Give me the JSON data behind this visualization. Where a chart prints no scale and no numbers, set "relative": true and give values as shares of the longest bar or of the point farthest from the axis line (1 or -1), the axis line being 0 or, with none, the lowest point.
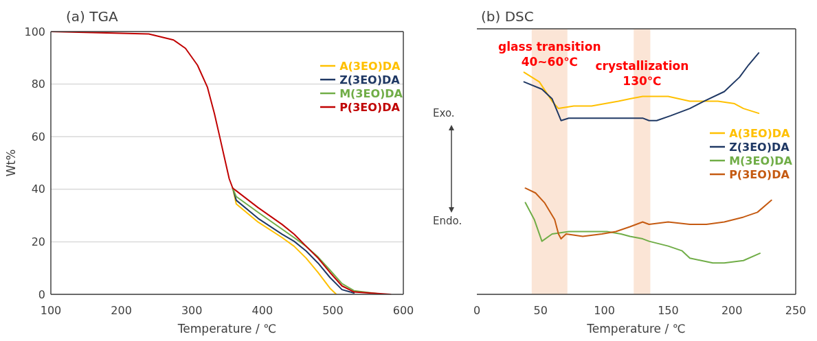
{
  "chart_data": [
    {
      "type": "line",
      "title": "(a) TGA",
      "xlabel": "Temperature / ℃",
      "ylabel": "Wt%",
      "xlim": [
        100,
        600
      ],
      "xticks": [
        100,
        200,
        300,
        400,
        500,
        600
      ],
      "ylim": [
        0,
        100
      ],
      "yticks": [
        0,
        20,
        40,
        60,
        80,
        100
      ],
      "grid": "y",
      "legend": "top right",
      "line_style": "solid",
      "series": [
        {
          "name": "A(3EO)DA",
          "color": "#ffc000",
          "x": [
            358,
            363,
            394,
            428,
            445,
            462,
            479,
            496,
            505
          ],
          "values": [
            40.4,
            34.4,
            27.5,
            21.6,
            18.3,
            13.8,
            8.3,
            2.3,
            0
          ]
        },
        {
          "name": "Z(3EO)DA",
          "color": "#1f3864",
          "x": [
            358,
            363,
            394,
            428,
            445,
            462,
            479,
            496,
            513,
            530
          ],
          "values": [
            40.4,
            35.8,
            28.9,
            22.9,
            20.2,
            16.5,
            11.9,
            6.4,
            1.8,
            0.5
          ]
        },
        {
          "name": "M(3EO)DA",
          "color": "#70ad47",
          "x": [
            358,
            363,
            394,
            428,
            445,
            462,
            479,
            496,
            513,
            530,
            565
          ],
          "values": [
            40.4,
            37.2,
            31.2,
            24.8,
            21.6,
            18.3,
            14.2,
            9.2,
            4.1,
            1.4,
            0.2
          ]
        },
        {
          "name": "P(3EO)DA",
          "color": "#c00000",
          "x": [
            100,
            239,
            274,
            291,
            308,
            322,
            332,
            339,
            346,
            353,
            358,
            363,
            394,
            428,
            445,
            462,
            479,
            496,
            513,
            530,
            582
          ],
          "values": [
            100,
            99.1,
            96.8,
            93.6,
            87.2,
            78.9,
            68.8,
            60.6,
            52.3,
            44.0,
            40.4,
            39.4,
            33.0,
            26.6,
            22.9,
            18.3,
            13.8,
            8.3,
            3.2,
            0.9,
            0
          ]
        }
      ]
    },
    {
      "type": "line",
      "title": "(b) DSC",
      "xlabel": "Temperature  / ℃",
      "relative": true,
      "xlim": [
        0,
        250
      ],
      "xticks": [
        0,
        50,
        100,
        150,
        200,
        250
      ],
      "grid": "y",
      "legend": "right",
      "line_style": "solid",
      "annotations": [
        "Exo.",
        "Endo."
      ],
      "bands": [
        {
          "axis": "x",
          "from": 43,
          "to": 71,
          "label": "glass transition\n40~60℃",
          "color": "#fbe5d6"
        },
        {
          "axis": "x",
          "from": 123,
          "to": 136,
          "label": "crystallization\n130℃",
          "color": "#fbe5d6"
        }
      ],
      "series": [
        {
          "name": "A(3EO)DA",
          "color": "#ffc000",
          "x": [
            37,
            49,
            59,
            64,
            76,
            90,
            111,
            120,
            130,
            139,
            150,
            167,
            176,
            189,
            202,
            209,
            221
          ],
          "values": [
            0.92,
            0.88,
            0.8,
            0.77,
            0.78,
            0.78,
            0.8,
            0.81,
            0.82,
            0.82,
            0.82,
            0.8,
            0.8,
            0.8,
            0.79,
            0.77,
            0.75
          ]
        },
        {
          "name": "Z(3EO)DA",
          "color": "#1f3864",
          "x": [
            37,
            51,
            59,
            66,
            72,
            92,
            105,
            120,
            130,
            135,
            141,
            152,
            167,
            178,
            194,
            206,
            213,
            221
          ],
          "values": [
            0.88,
            0.85,
            0.81,
            0.72,
            0.73,
            0.73,
            0.73,
            0.73,
            0.73,
            0.72,
            0.72,
            0.74,
            0.77,
            0.8,
            0.84,
            0.9,
            0.95,
            1.0
          ]
        },
        {
          "name": "M(3EO)DA",
          "color": "#70ad47",
          "x": [
            38,
            45,
            51,
            59,
            72,
            87,
            102,
            113,
            120,
            130,
            135,
            150,
            161,
            167,
            176,
            185,
            194,
            209,
            222
          ],
          "values": [
            0.38,
            0.31,
            0.22,
            0.25,
            0.26,
            0.26,
            0.26,
            0.25,
            0.24,
            0.23,
            0.22,
            0.2,
            0.18,
            0.15,
            0.14,
            0.13,
            0.13,
            0.14,
            0.17
          ]
        },
        {
          "name": "P(3EO)DA",
          "color": "#c55a11",
          "x": [
            38,
            46,
            53,
            61,
            64,
            66,
            70,
            83,
            98,
            109,
            120,
            130,
            135,
            150,
            167,
            180,
            194,
            209,
            220,
            231
          ],
          "values": [
            0.44,
            0.42,
            0.38,
            0.31,
            0.25,
            0.23,
            0.25,
            0.24,
            0.25,
            0.26,
            0.28,
            0.3,
            0.29,
            0.3,
            0.29,
            0.29,
            0.3,
            0.32,
            0.34,
            0.39
          ]
        }
      ]
    }
  ]
}
